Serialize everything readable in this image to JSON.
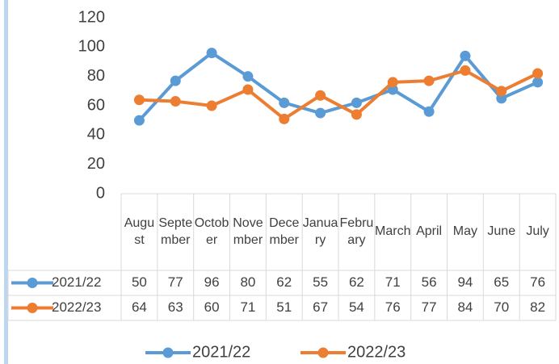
{
  "chart_data": {
    "type": "line",
    "categories": [
      "August",
      "September",
      "October",
      "November",
      "December",
      "January",
      "February",
      "March",
      "April",
      "May",
      "June",
      "July"
    ],
    "series": [
      {
        "name": "2021/22",
        "color": "#5b9bd5",
        "values": [
          50,
          77,
          96,
          80,
          62,
          55,
          62,
          71,
          56,
          94,
          65,
          76
        ]
      },
      {
        "name": "2022/23",
        "color": "#ed7d31",
        "values": [
          64,
          63,
          60,
          71,
          51,
          67,
          54,
          76,
          77,
          84,
          70,
          82
        ]
      }
    ],
    "ylim": [
      0,
      120
    ],
    "yticks": [
      0,
      20,
      40,
      60,
      80,
      100,
      120
    ],
    "grid": false,
    "legend": "bottom"
  }
}
